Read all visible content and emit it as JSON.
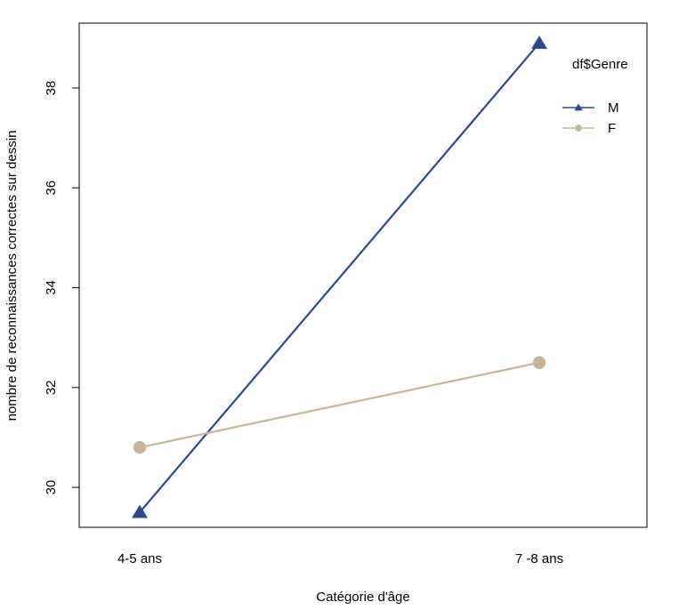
{
  "chart_data": {
    "type": "line",
    "categories": [
      "4-5 ans",
      "7 -8 ans"
    ],
    "series": [
      {
        "name": "M",
        "values": [
          29.5,
          38.9
        ],
        "color": "#2b4a8b",
        "marker": "triangle"
      },
      {
        "name": "F",
        "values": [
          30.8,
          32.5
        ],
        "color": "#c9b49b",
        "marker": "circle"
      }
    ],
    "title": "",
    "xlabel": "Catégorie d'âge",
    "ylabel": "nombre de reconnaissances correctes sur dessin",
    "ylim": [
      29.2,
      39.3
    ],
    "yticks": [
      "30",
      "32",
      "34",
      "36",
      "38"
    ],
    "grid": false,
    "legend": {
      "title": "df$Genre",
      "position": "top-right",
      "entries": [
        "M",
        "F"
      ]
    }
  }
}
